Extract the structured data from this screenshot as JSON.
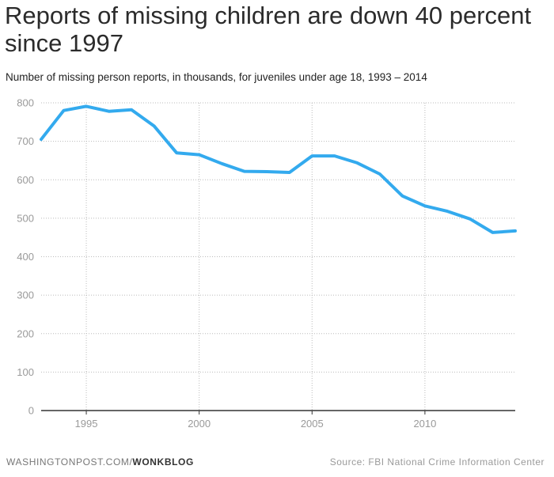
{
  "title": "Reports of missing children are down 40 percent since 1997",
  "subtitle": "Number of missing person reports, in thousands, for juveniles under age 18, 1993 – 2014",
  "footer": {
    "site": "WASHINGTONPOST.COM/",
    "brand": "WONKBLOG",
    "source": "Source: FBI National Crime Information Center"
  },
  "colors": {
    "line": "#33aaee",
    "grid": "#bbbbbb",
    "axis": "#333333"
  },
  "chart_data": {
    "type": "line",
    "title": "Reports of missing children are down 40 percent since 1997",
    "subtitle": "Number of missing person reports, in thousands, for juveniles under age 18, 1993 – 2014",
    "xlabel": "",
    "ylabel": "",
    "xlim": [
      1993,
      2014
    ],
    "ylim": [
      0,
      800
    ],
    "x_ticks": [
      1995,
      2000,
      2005,
      2010
    ],
    "y_ticks": [
      0,
      100,
      200,
      300,
      400,
      500,
      600,
      700,
      800
    ],
    "grid": true,
    "legend": "none",
    "x": [
      1993,
      1994,
      1995,
      1996,
      1997,
      1998,
      1999,
      2000,
      2001,
      2002,
      2003,
      2004,
      2005,
      2006,
      2007,
      2008,
      2009,
      2010,
      2011,
      2012,
      2013,
      2014
    ],
    "values": [
      705,
      780,
      791,
      778,
      782,
      740,
      670,
      665,
      642,
      622,
      621,
      619,
      662,
      662,
      644,
      615,
      558,
      532,
      518,
      498,
      463,
      467
    ]
  }
}
